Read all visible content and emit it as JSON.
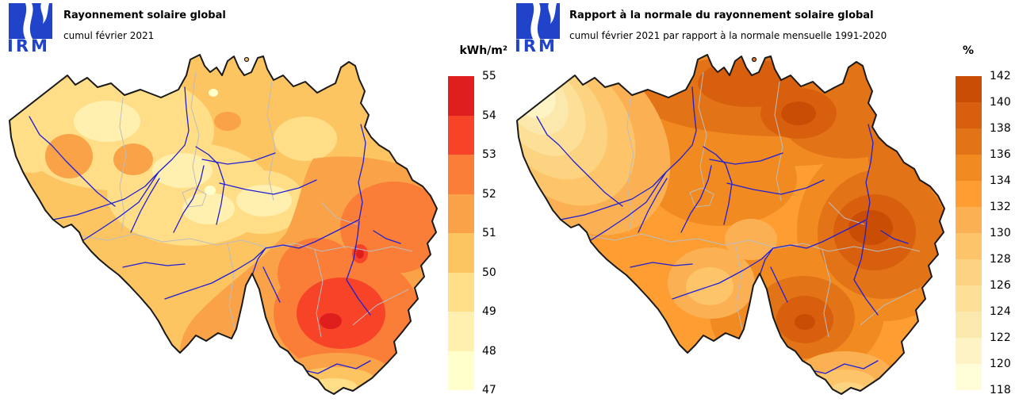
{
  "logo": {
    "text": "IRM",
    "color": "#2143ca"
  },
  "map": {
    "country": "Belgique",
    "background": "#ffffff",
    "border_color": "#1a1a1a",
    "river_color": "#1f1fd6",
    "province_border_color": "#bdbdbd"
  },
  "panels": [
    {
      "title": "Rayonnement solaire global",
      "subtitle": "cumul février 2021",
      "legend": {
        "unit": "kWh/m²",
        "tick_labels": [
          "55",
          "54",
          "53",
          "52",
          "51",
          "50",
          "49",
          "48",
          "47"
        ],
        "colors_top_to_bottom": [
          "#df1e1e",
          "#f74327",
          "#fa7d38",
          "#faa247",
          "#fdc462",
          "#ffde87",
          "#fff0b0",
          "#ffffcc"
        ]
      }
    },
    {
      "title": "Rapport à la normale du rayonnement solaire global",
      "subtitle": "cumul février 2021 par rapport à la normale mensuelle 1991-2020",
      "legend": {
        "unit": "%",
        "tick_labels": [
          "142",
          "140",
          "138",
          "136",
          "134",
          "132",
          "130",
          "128",
          "126",
          "124",
          "122",
          "120",
          "118"
        ],
        "colors_top_to_bottom": [
          "#ca4d05",
          "#d85f0e",
          "#e27317",
          "#f18a21",
          "#fd9d32",
          "#fbb054",
          "#fdc46a",
          "#fbd381",
          "#fddf97",
          "#fbe8ac",
          "#fef3c4",
          "#fffdd8"
        ]
      }
    }
  ],
  "chart_data": [
    {
      "type": "heatmap",
      "title": "Rayonnement solaire global",
      "subtitle": "cumul février 2021",
      "unit": "kWh/m²",
      "scale_ticks": [
        55,
        54,
        53,
        52,
        51,
        50,
        49,
        48,
        47
      ],
      "scale_range": [
        47,
        55
      ],
      "pattern": "minimum (47-50) au nord-ouest et au centre, maximum (53-55) au sud-est (Ardennes)"
    },
    {
      "type": "heatmap",
      "title": "Rapport à la normale du rayonnement solaire global",
      "subtitle": "cumul février 2021 par rapport à la normale mensuelle 1991-2020",
      "unit": "%",
      "scale_ticks": [
        142,
        140,
        138,
        136,
        134,
        132,
        130,
        128,
        126,
        124,
        122,
        120,
        118
      ],
      "scale_range": [
        118,
        142
      ],
      "pattern": "minimum (118-124) à la côte nord-ouest, maximum (138-142) au nord-est et à l'est"
    }
  ]
}
